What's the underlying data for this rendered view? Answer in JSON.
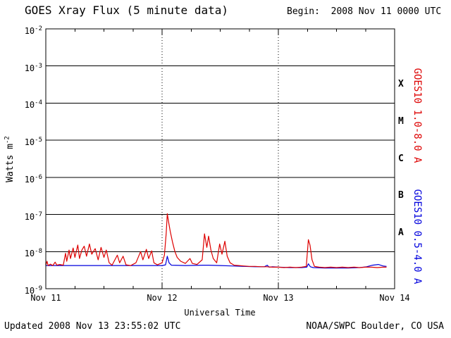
{
  "header": {
    "title": "GOES Xray Flux (5 minute data)",
    "begin_label": "Begin:  2008 Nov 11 0000 UTC"
  },
  "footer": {
    "updated": "Updated 2008 Nov 13 23:55:02 UTC",
    "source": "NOAA/SWPC Boulder, CO USA"
  },
  "colors": {
    "background": "#ffffff",
    "axis": "#000000",
    "long_channel_red": "#dd0000",
    "short_channel_blue": "#0000dd"
  },
  "chart_data": {
    "type": "line",
    "title": "GOES Xray Flux (5 minute data)",
    "xlabel": "Universal Time",
    "ylabel_parts": {
      "prefix": "Watts m",
      "sup": "-2"
    },
    "x_unit": "days since 2008 Nov 11 0000 UTC",
    "xlim": [
      0,
      3
    ],
    "ylim_log10": [
      -9,
      -2
    ],
    "y_scale": "log",
    "x_ticks": [
      {
        "value": 0,
        "label": "Nov 11"
      },
      {
        "value": 1,
        "label": "Nov 12"
      },
      {
        "value": 2,
        "label": "Nov 13"
      },
      {
        "value": 3,
        "label": "Nov 14"
      }
    ],
    "y_tick_exponents": [
      -2,
      -3,
      -4,
      -5,
      -6,
      -7,
      -8,
      -9
    ],
    "flare_classes": [
      {
        "label": "X",
        "log10_flux": -3.5
      },
      {
        "label": "M",
        "log10_flux": -4.5
      },
      {
        "label": "C",
        "log10_flux": -5.5
      },
      {
        "label": "B",
        "log10_flux": -6.5
      },
      {
        "label": "A",
        "log10_flux": -7.5
      }
    ],
    "grid": {
      "horizontal_solid_log10": [
        -3,
        -4,
        -5,
        -6,
        -7,
        -8
      ],
      "vertical_dotted_days": [
        1,
        2
      ],
      "minor_tick_interval_days": 0.25
    },
    "legend_position": "right-rotated",
    "series": [
      {
        "name": "GOES10 1.0-8.0 A",
        "color": "#dd0000",
        "points": [
          [
            0.0,
            4.3e-09
          ],
          [
            0.01,
            5.5e-09
          ],
          [
            0.02,
            4.2e-09
          ],
          [
            0.04,
            4.6e-09
          ],
          [
            0.06,
            4.2e-09
          ],
          [
            0.08,
            5.2e-09
          ],
          [
            0.095,
            4.3e-09
          ],
          [
            0.12,
            4.5e-09
          ],
          [
            0.15,
            4.3e-09
          ],
          [
            0.17,
            9e-09
          ],
          [
            0.18,
            5.5e-09
          ],
          [
            0.2,
            1.1e-08
          ],
          [
            0.212,
            6.5e-09
          ],
          [
            0.235,
            1.25e-08
          ],
          [
            0.25,
            7e-09
          ],
          [
            0.275,
            1.5e-08
          ],
          [
            0.29,
            6.5e-09
          ],
          [
            0.31,
            1.1e-08
          ],
          [
            0.33,
            1.4e-08
          ],
          [
            0.35,
            7.5e-09
          ],
          [
            0.375,
            1.6e-08
          ],
          [
            0.395,
            8.5e-09
          ],
          [
            0.425,
            1.2e-08
          ],
          [
            0.45,
            6e-09
          ],
          [
            0.475,
            1.3e-08
          ],
          [
            0.5,
            7e-09
          ],
          [
            0.52,
            1.1e-08
          ],
          [
            0.545,
            5e-09
          ],
          [
            0.57,
            4.3e-09
          ],
          [
            0.615,
            8e-09
          ],
          [
            0.635,
            5e-09
          ],
          [
            0.665,
            7.5e-09
          ],
          [
            0.69,
            4.4e-09
          ],
          [
            0.73,
            4.2e-09
          ],
          [
            0.775,
            5e-09
          ],
          [
            0.815,
            1e-08
          ],
          [
            0.835,
            6e-09
          ],
          [
            0.865,
            1.15e-08
          ],
          [
            0.885,
            6.5e-09
          ],
          [
            0.91,
            1.05e-08
          ],
          [
            0.93,
            5e-09
          ],
          [
            0.96,
            4.4e-09
          ],
          [
            1.0,
            5e-09
          ],
          [
            1.02,
            8e-09
          ],
          [
            1.035,
            3e-08
          ],
          [
            1.045,
            1.05e-07
          ],
          [
            1.055,
            6.5e-08
          ],
          [
            1.07,
            3.5e-08
          ],
          [
            1.09,
            1.8e-08
          ],
          [
            1.11,
            1e-08
          ],
          [
            1.13,
            7e-09
          ],
          [
            1.16,
            5.5e-09
          ],
          [
            1.2,
            4.8e-09
          ],
          [
            1.24,
            6.5e-09
          ],
          [
            1.26,
            4.8e-09
          ],
          [
            1.3,
            4.5e-09
          ],
          [
            1.345,
            6e-09
          ],
          [
            1.365,
            3e-08
          ],
          [
            1.385,
            1.3e-08
          ],
          [
            1.4,
            2.6e-08
          ],
          [
            1.42,
            1.1e-08
          ],
          [
            1.44,
            6.5e-09
          ],
          [
            1.47,
            5e-09
          ],
          [
            1.495,
            1.6e-08
          ],
          [
            1.515,
            8.5e-09
          ],
          [
            1.54,
            1.9e-08
          ],
          [
            1.56,
            7.5e-09
          ],
          [
            1.585,
            5e-09
          ],
          [
            1.62,
            4.3e-09
          ],
          [
            1.66,
            4.2e-09
          ],
          [
            1.7,
            4.1e-09
          ],
          [
            1.75,
            4e-09
          ],
          [
            1.8,
            4e-09
          ],
          [
            1.85,
            3.9e-09
          ],
          [
            1.9,
            3.9e-09
          ],
          [
            1.95,
            3.8e-09
          ],
          [
            2.0,
            3.8e-09
          ],
          [
            2.05,
            3.7e-09
          ],
          [
            2.1,
            3.8e-09
          ],
          [
            2.15,
            3.7e-09
          ],
          [
            2.2,
            3.8e-09
          ],
          [
            2.24,
            4e-09
          ],
          [
            2.258,
            2.1e-08
          ],
          [
            2.272,
            1.5e-08
          ],
          [
            2.29,
            6e-09
          ],
          [
            2.31,
            4e-09
          ],
          [
            2.35,
            3.8e-09
          ],
          [
            2.4,
            3.7e-09
          ],
          [
            2.45,
            3.8e-09
          ],
          [
            2.5,
            3.7e-09
          ],
          [
            2.55,
            3.8e-09
          ],
          [
            2.6,
            3.7e-09
          ],
          [
            2.65,
            3.8e-09
          ],
          [
            2.7,
            3.7e-09
          ],
          [
            2.75,
            3.8e-09
          ],
          [
            2.8,
            3.8e-09
          ],
          [
            2.85,
            3.7e-09
          ],
          [
            2.9,
            3.8e-09
          ],
          [
            2.93,
            3.8e-09
          ]
        ]
      },
      {
        "name": "GOES10 0.5-4.0 A",
        "color": "#0000dd",
        "points": [
          [
            0.0,
            4.2e-09
          ],
          [
            0.15,
            4.2e-09
          ],
          [
            0.3,
            4.2e-09
          ],
          [
            0.45,
            4.2e-09
          ],
          [
            0.6,
            4.2e-09
          ],
          [
            0.75,
            4.2e-09
          ],
          [
            0.9,
            4.2e-09
          ],
          [
            1.0,
            4.2e-09
          ],
          [
            1.03,
            4.4e-09
          ],
          [
            1.045,
            7.5e-09
          ],
          [
            1.06,
            5e-09
          ],
          [
            1.08,
            4.3e-09
          ],
          [
            1.2,
            4.2e-09
          ],
          [
            1.35,
            4.3e-09
          ],
          [
            1.4,
            4.3e-09
          ],
          [
            1.5,
            4.2e-09
          ],
          [
            1.6,
            4.1e-09
          ],
          [
            1.7,
            4e-09
          ],
          [
            1.8,
            3.9e-09
          ],
          [
            1.88,
            3.9e-09
          ],
          [
            1.905,
            4.3e-09
          ],
          [
            1.92,
            3.8e-09
          ],
          [
            1.95,
            3.9e-09
          ],
          [
            2.0,
            3.8e-09
          ],
          [
            2.1,
            3.7e-09
          ],
          [
            2.2,
            3.7e-09
          ],
          [
            2.245,
            3.8e-09
          ],
          [
            2.258,
            4.7e-09
          ],
          [
            2.275,
            3.9e-09
          ],
          [
            2.3,
            3.7e-09
          ],
          [
            2.4,
            3.6e-09
          ],
          [
            2.5,
            3.6e-09
          ],
          [
            2.6,
            3.6e-09
          ],
          [
            2.7,
            3.7e-09
          ],
          [
            2.76,
            3.9e-09
          ],
          [
            2.81,
            4.3e-09
          ],
          [
            2.86,
            4.5e-09
          ],
          [
            2.9,
            4.1e-09
          ],
          [
            2.93,
            4e-09
          ]
        ]
      }
    ]
  }
}
